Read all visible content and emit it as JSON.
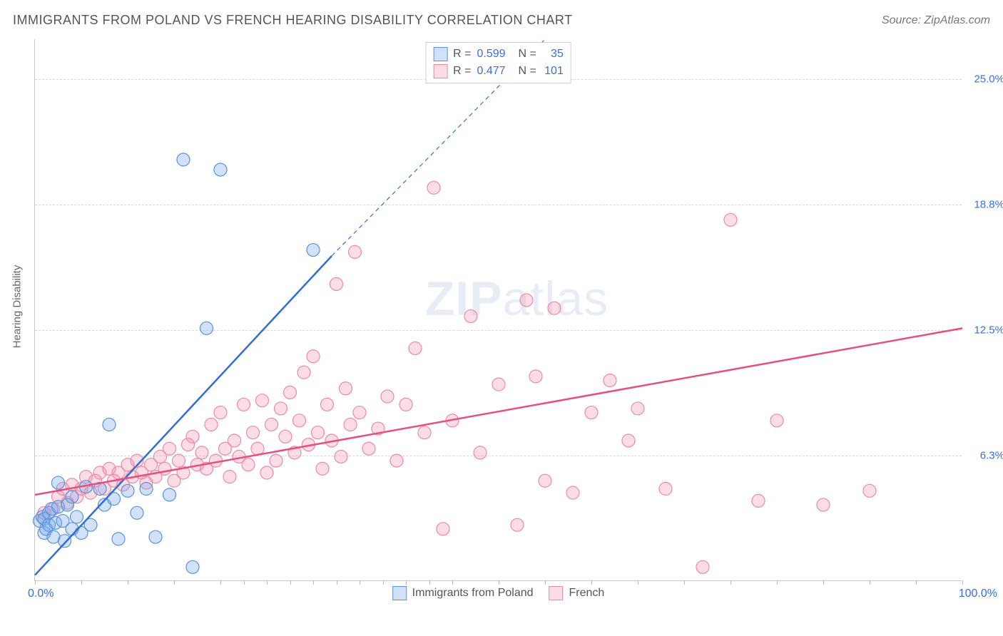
{
  "header": {
    "title": "IMMIGRANTS FROM POLAND VS FRENCH HEARING DISABILITY CORRELATION CHART",
    "source": "Source: ZipAtlas.com"
  },
  "watermark": {
    "zip": "ZIP",
    "atlas": "atlas"
  },
  "chart": {
    "type": "scatter",
    "y_axis_label": "Hearing Disability",
    "xlim": [
      0,
      100
    ],
    "ylim": [
      0,
      27
    ],
    "x_ticks": [
      0,
      5,
      10,
      15,
      20,
      22.5,
      25,
      27.5,
      30,
      32.5,
      35,
      37.5,
      40,
      42.5,
      45,
      50,
      55,
      60,
      65,
      70,
      75,
      80,
      85,
      90,
      95,
      100
    ],
    "x_axis_labels": {
      "left": "0.0%",
      "right": "100.0%"
    },
    "y_gridlines": [
      {
        "value": 6.25,
        "label": "6.3%"
      },
      {
        "value": 12.5,
        "label": "12.5%"
      },
      {
        "value": 18.75,
        "label": "18.8%"
      },
      {
        "value": 25.0,
        "label": "25.0%"
      }
    ],
    "background_color": "#ffffff",
    "grid_color": "#d8d8d8",
    "axis_color": "#c9c9c9",
    "tick_label_color_blue": "#3b6fd6",
    "tick_label_color_pink": "#e6527a",
    "marker_radius": 9,
    "marker_stroke_width": 1.2,
    "line_width": 2.5,
    "series": {
      "blue": {
        "name": "Immigrants from Poland",
        "R": "0.599",
        "N": "35",
        "fill": "rgba(120,170,235,0.35)",
        "stroke": "#5b93d8",
        "line_color": "#2f6fd4",
        "trend": {
          "x1": 0,
          "y1": 0.3,
          "x2": 32,
          "y2": 16.2,
          "dash_after_x": 32,
          "dash_x2": 55,
          "dash_y2": 27
        },
        "points": [
          [
            0.5,
            3.0
          ],
          [
            0.8,
            3.2
          ],
          [
            1.0,
            2.4
          ],
          [
            1.0,
            3.1
          ],
          [
            1.2,
            2.6
          ],
          [
            1.5,
            2.8
          ],
          [
            1.5,
            3.4
          ],
          [
            1.8,
            3.6
          ],
          [
            2.0,
            2.2
          ],
          [
            2.2,
            2.9
          ],
          [
            2.5,
            3.7
          ],
          [
            2.5,
            4.9
          ],
          [
            3.0,
            3.0
          ],
          [
            3.2,
            2.0
          ],
          [
            3.5,
            3.8
          ],
          [
            4.0,
            2.6
          ],
          [
            4.0,
            4.2
          ],
          [
            4.5,
            3.2
          ],
          [
            5.0,
            2.4
          ],
          [
            5.5,
            4.7
          ],
          [
            6.0,
            2.8
          ],
          [
            7.0,
            4.6
          ],
          [
            7.5,
            3.8
          ],
          [
            8.0,
            7.8
          ],
          [
            8.5,
            4.1
          ],
          [
            9.0,
            2.1
          ],
          [
            10.0,
            4.5
          ],
          [
            11.0,
            3.4
          ],
          [
            12.0,
            4.6
          ],
          [
            13.0,
            2.2
          ],
          [
            14.5,
            4.3
          ],
          [
            16.0,
            21.0
          ],
          [
            17.0,
            0.7
          ],
          [
            18.5,
            12.6
          ],
          [
            20.0,
            20.5
          ],
          [
            30.0,
            16.5
          ]
        ]
      },
      "pink": {
        "name": "French",
        "R": "0.477",
        "N": "101",
        "fill": "rgba(245,140,170,0.30)",
        "stroke": "#e98aa8",
        "line_color": "#e55080",
        "trend": {
          "x1": 0,
          "y1": 4.3,
          "x2": 100,
          "y2": 12.6
        },
        "points": [
          [
            1,
            3.4
          ],
          [
            2,
            3.6
          ],
          [
            2.5,
            4.2
          ],
          [
            3,
            4.6
          ],
          [
            3.5,
            3.9
          ],
          [
            4,
            4.8
          ],
          [
            4.5,
            4.2
          ],
          [
            5,
            4.6
          ],
          [
            5.5,
            5.2
          ],
          [
            6,
            4.4
          ],
          [
            6.5,
            5.0
          ],
          [
            7,
            5.4
          ],
          [
            7.5,
            4.6
          ],
          [
            8,
            5.6
          ],
          [
            8.5,
            5.0
          ],
          [
            9,
            5.4
          ],
          [
            9.5,
            4.8
          ],
          [
            10,
            5.8
          ],
          [
            10.5,
            5.2
          ],
          [
            11,
            6.0
          ],
          [
            11.5,
            5.4
          ],
          [
            12,
            4.9
          ],
          [
            12.5,
            5.8
          ],
          [
            13,
            5.2
          ],
          [
            13.5,
            6.2
          ],
          [
            14,
            5.6
          ],
          [
            14.5,
            6.6
          ],
          [
            15,
            5.0
          ],
          [
            15.5,
            6.0
          ],
          [
            16,
            5.4
          ],
          [
            16.5,
            6.8
          ],
          [
            17,
            7.2
          ],
          [
            17.5,
            5.8
          ],
          [
            18,
            6.4
          ],
          [
            18.5,
            5.6
          ],
          [
            19,
            7.8
          ],
          [
            19.5,
            6.0
          ],
          [
            20,
            8.4
          ],
          [
            20.5,
            6.6
          ],
          [
            21,
            5.2
          ],
          [
            21.5,
            7.0
          ],
          [
            22,
            6.2
          ],
          [
            22.5,
            8.8
          ],
          [
            23,
            5.8
          ],
          [
            23.5,
            7.4
          ],
          [
            24,
            6.6
          ],
          [
            24.5,
            9.0
          ],
          [
            25,
            5.4
          ],
          [
            25.5,
            7.8
          ],
          [
            26,
            6.0
          ],
          [
            26.5,
            8.6
          ],
          [
            27,
            7.2
          ],
          [
            27.5,
            9.4
          ],
          [
            28,
            6.4
          ],
          [
            28.5,
            8.0
          ],
          [
            29,
            10.4
          ],
          [
            29.5,
            6.8
          ],
          [
            30,
            11.2
          ],
          [
            30.5,
            7.4
          ],
          [
            31,
            5.6
          ],
          [
            31.5,
            8.8
          ],
          [
            32,
            7.0
          ],
          [
            32.5,
            14.8
          ],
          [
            33,
            6.2
          ],
          [
            33.5,
            9.6
          ],
          [
            34,
            7.8
          ],
          [
            34.5,
            16.4
          ],
          [
            35,
            8.4
          ],
          [
            36,
            6.6
          ],
          [
            37,
            7.6
          ],
          [
            38,
            9.2
          ],
          [
            39,
            6.0
          ],
          [
            40,
            8.8
          ],
          [
            41,
            11.6
          ],
          [
            42,
            7.4
          ],
          [
            43,
            19.6
          ],
          [
            44,
            2.6
          ],
          [
            45,
            8.0
          ],
          [
            47,
            13.2
          ],
          [
            48,
            6.4
          ],
          [
            50,
            9.8
          ],
          [
            52,
            2.8
          ],
          [
            53,
            14.0
          ],
          [
            54,
            10.2
          ],
          [
            55,
            5.0
          ],
          [
            56,
            13.6
          ],
          [
            58,
            4.4
          ],
          [
            60,
            8.4
          ],
          [
            62,
            10.0
          ],
          [
            64,
            7.0
          ],
          [
            65,
            8.6
          ],
          [
            68,
            4.6
          ],
          [
            72,
            0.7
          ],
          [
            75,
            18.0
          ],
          [
            78,
            4.0
          ],
          [
            80,
            8.0
          ],
          [
            85,
            3.8
          ],
          [
            90,
            4.5
          ]
        ]
      }
    },
    "legend_top": {
      "R_label": "R =",
      "N_label": "N ="
    },
    "legend_bottom": [
      {
        "key": "blue",
        "label": "Immigrants from Poland"
      },
      {
        "key": "pink",
        "label": "French"
      }
    ]
  }
}
